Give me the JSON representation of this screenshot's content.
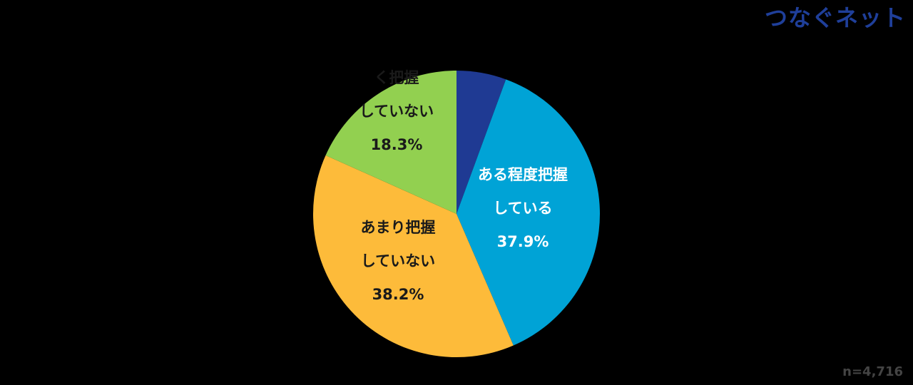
{
  "logo_text": "つなぐネット",
  "sample_size": "n=4,716",
  "chart_data": {
    "type": "pie",
    "start": "top",
    "direction": "clockwise",
    "slices": [
      {
        "name": "",
        "value": 5.6,
        "color": "#1f3a93",
        "label_lines": [],
        "label_color": "#ffffff"
      },
      {
        "name": "ある程度把握している",
        "value": 37.9,
        "color": "#00a3d6",
        "label_lines": [
          "ある程度把握",
          "している",
          "37.9%"
        ],
        "label_color": "#ffffff"
      },
      {
        "name": "あまり把握していない",
        "value": 38.2,
        "color": "#fdbb3a",
        "label_lines": [
          "あまり把握",
          "していない",
          "38.2%"
        ],
        "label_color": "#1a1a1a"
      },
      {
        "name": "全く把握していない",
        "value": 18.3,
        "color": "#92d050",
        "label_lines": [
          "く把握",
          "していない",
          "18.3%"
        ],
        "label_color": "#1a1a1a"
      }
    ]
  }
}
